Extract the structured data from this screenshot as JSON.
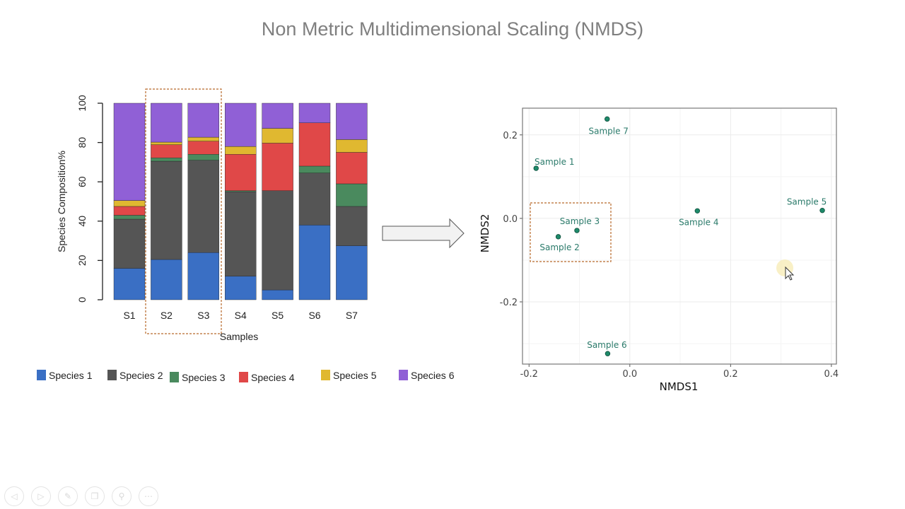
{
  "slide": {
    "title": "Non Metric Multidimensional Scaling (NMDS)"
  },
  "colors": {
    "species": [
      "#3a6fc4",
      "#555555",
      "#4a8a5e",
      "#e04848",
      "#e0b830",
      "#9060d6"
    ],
    "point": "#1e8a6a",
    "highlight_box": "#b8692a"
  },
  "chart_data": [
    {
      "type": "bar",
      "stacked": true,
      "xlabel": "Samples",
      "ylabel": "Species Composition%",
      "ylim": [
        0,
        100
      ],
      "yticks": [
        "0",
        "20",
        "40",
        "60",
        "80",
        "100"
      ],
      "categories": [
        "S1",
        "S2",
        "S3",
        "S4",
        "S5",
        "S6",
        "S7"
      ],
      "highlighted_categories": [
        "S2",
        "S3"
      ],
      "legend_position": "bottom",
      "series": [
        {
          "name": "Species 1",
          "values": [
            16,
            20.5,
            24,
            12,
            5,
            38,
            27.5
          ]
        },
        {
          "name": "Species 2",
          "values": [
            25,
            50,
            47,
            43,
            50.5,
            26.5,
            20
          ]
        },
        {
          "name": "Species 3",
          "values": [
            2,
            1.7,
            3,
            0.5,
            0,
            3.5,
            11.5
          ]
        },
        {
          "name": "Species 4",
          "values": [
            4.5,
            6.7,
            6.7,
            18.5,
            24.2,
            22,
            16
          ]
        },
        {
          "name": "Species 5",
          "values": [
            3,
            1.3,
            2,
            4,
            7.5,
            0,
            6.5
          ]
        },
        {
          "name": "Species 6",
          "values": [
            49.5,
            19.8,
            17.3,
            22,
            12.8,
            10,
            18.5
          ]
        }
      ]
    },
    {
      "type": "scatter",
      "xlabel": "NMDS1",
      "ylabel": "NMDS2",
      "xlim": [
        -0.213,
        0.41
      ],
      "ylim": [
        -0.349,
        0.264
      ],
      "xticks": [
        "-0.2",
        "0.0",
        "0.2",
        "0.4"
      ],
      "xtick_values": [
        -0.2,
        0,
        0.2,
        0.4
      ],
      "yticks": [
        "-0.2",
        "0.0",
        "0.2"
      ],
      "ytick_values": [
        -0.2,
        0,
        0.2
      ],
      "grid": true,
      "highlighted_points": [
        "Sample 2",
        "Sample 3"
      ],
      "points": [
        {
          "label": "Sample 1",
          "x": -0.186,
          "y": 0.12
        },
        {
          "label": "Sample 2",
          "x": -0.142,
          "y": -0.044
        },
        {
          "label": "Sample 3",
          "x": -0.105,
          "y": -0.029
        },
        {
          "label": "Sample 4",
          "x": 0.134,
          "y": 0.018
        },
        {
          "label": "Sample 5",
          "x": 0.382,
          "y": 0.019
        },
        {
          "label": "Sample 6",
          "x": -0.044,
          "y": -0.324
        },
        {
          "label": "Sample 7",
          "x": -0.045,
          "y": 0.238
        }
      ]
    }
  ],
  "player_controls": [
    {
      "icon": "previous-icon",
      "glyph": "◁"
    },
    {
      "icon": "next-icon",
      "glyph": "▷"
    },
    {
      "icon": "pen-icon",
      "glyph": "✎"
    },
    {
      "icon": "slides-icon",
      "glyph": "❐"
    },
    {
      "icon": "zoom-icon",
      "glyph": "⚲"
    },
    {
      "icon": "more-icon",
      "glyph": "⋯"
    }
  ]
}
